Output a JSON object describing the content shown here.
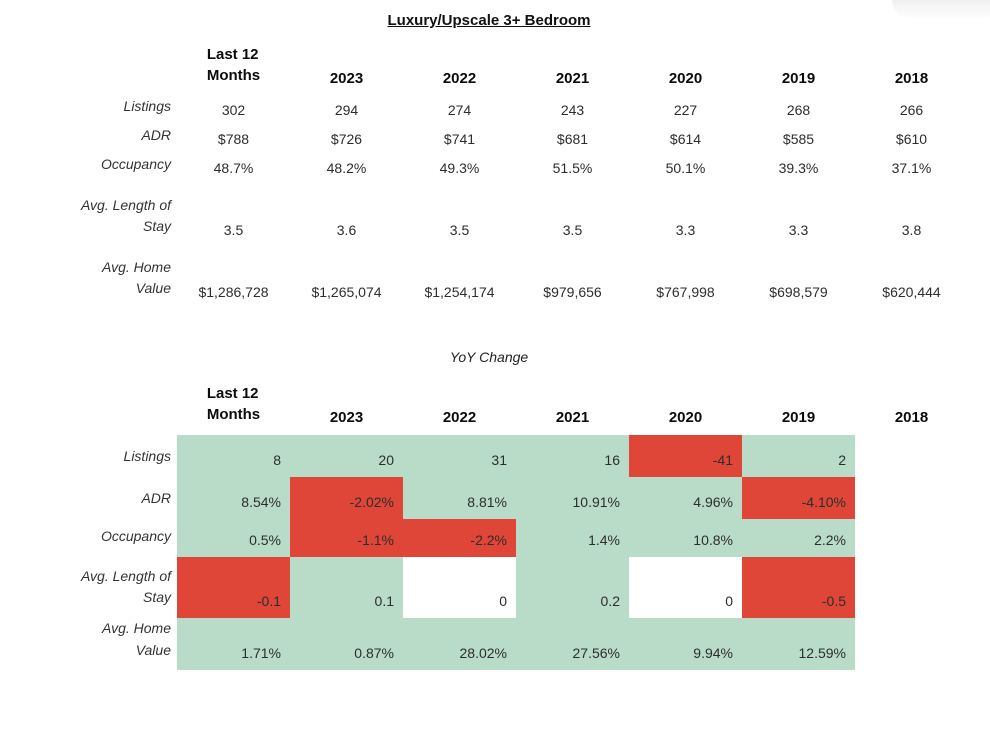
{
  "page": {
    "background": "#ffffff"
  },
  "colors": {
    "positive_bg": "#b9dcc8",
    "negative_bg": "#e04638",
    "neutral_bg": "#ffffff",
    "header_text": "#0c0c0c",
    "body_text": "#2d2d2d"
  },
  "columns": [
    "Last 12\nMonths",
    "2023",
    "2022",
    "2021",
    "2020",
    "2019",
    "2018"
  ],
  "metrics_table": {
    "title": "Luxury/Upscale 3+ Bedroom",
    "rows": [
      {
        "label": "Listings",
        "values": [
          "302",
          "294",
          "274",
          "243",
          "227",
          "268",
          "266"
        ]
      },
      {
        "label": "ADR",
        "values": [
          "$788",
          "$726",
          "$741",
          "$681",
          "$614",
          "$585",
          "$610"
        ]
      },
      {
        "label": "Occupancy",
        "values": [
          "48.7%",
          "48.2%",
          "49.3%",
          "51.5%",
          "50.1%",
          "39.3%",
          "37.1%"
        ]
      },
      {
        "label": "Avg. Length of\nStay",
        "values": [
          "3.5",
          "3.6",
          "3.5",
          "3.5",
          "3.3",
          "3.3",
          "3.8"
        ]
      },
      {
        "label": "Avg. Home\nValue",
        "values": [
          "$1,286,728",
          "$1,265,074",
          "$1,254,174",
          "$979,656",
          "$767,998",
          "$698,579",
          "$620,444"
        ]
      }
    ]
  },
  "yoy_table": {
    "title": "YoY Change",
    "rows": [
      {
        "label": "Listings",
        "cells": [
          {
            "v": "8",
            "bg": "positive"
          },
          {
            "v": "20",
            "bg": "positive"
          },
          {
            "v": "31",
            "bg": "positive"
          },
          {
            "v": "16",
            "bg": "positive"
          },
          {
            "v": "-41",
            "bg": "negative"
          },
          {
            "v": "2",
            "bg": "positive"
          },
          {
            "v": "",
            "bg": "none"
          }
        ]
      },
      {
        "label": "ADR",
        "cells": [
          {
            "v": "8.54%",
            "bg": "positive"
          },
          {
            "v": "-2.02%",
            "bg": "negative"
          },
          {
            "v": "8.81%",
            "bg": "positive"
          },
          {
            "v": "10.91%",
            "bg": "positive"
          },
          {
            "v": "4.96%",
            "bg": "positive"
          },
          {
            "v": "-4.10%",
            "bg": "negative"
          },
          {
            "v": "",
            "bg": "none"
          }
        ]
      },
      {
        "label": "Occupancy",
        "cells": [
          {
            "v": "0.5%",
            "bg": "positive"
          },
          {
            "v": "-1.1%",
            "bg": "negative"
          },
          {
            "v": "-2.2%",
            "bg": "negative"
          },
          {
            "v": "1.4%",
            "bg": "positive"
          },
          {
            "v": "10.8%",
            "bg": "positive"
          },
          {
            "v": "2.2%",
            "bg": "positive"
          },
          {
            "v": "",
            "bg": "none"
          }
        ]
      },
      {
        "label": "Avg. Length of\nStay",
        "cells": [
          {
            "v": "-0.1",
            "bg": "negative"
          },
          {
            "v": "0.1",
            "bg": "positive"
          },
          {
            "v": "0",
            "bg": "neutral"
          },
          {
            "v": "0.2",
            "bg": "positive"
          },
          {
            "v": "0",
            "bg": "neutral"
          },
          {
            "v": "-0.5",
            "bg": "negative"
          },
          {
            "v": "",
            "bg": "none"
          }
        ]
      },
      {
        "label": "Avg. Home\nValue",
        "cells": [
          {
            "v": "1.71%",
            "bg": "positive"
          },
          {
            "v": "0.87%",
            "bg": "positive"
          },
          {
            "v": "28.02%",
            "bg": "positive"
          },
          {
            "v": "27.56%",
            "bg": "positive"
          },
          {
            "v": "9.94%",
            "bg": "positive"
          },
          {
            "v": "12.59%",
            "bg": "positive"
          },
          {
            "v": "",
            "bg": "none"
          }
        ]
      }
    ]
  }
}
